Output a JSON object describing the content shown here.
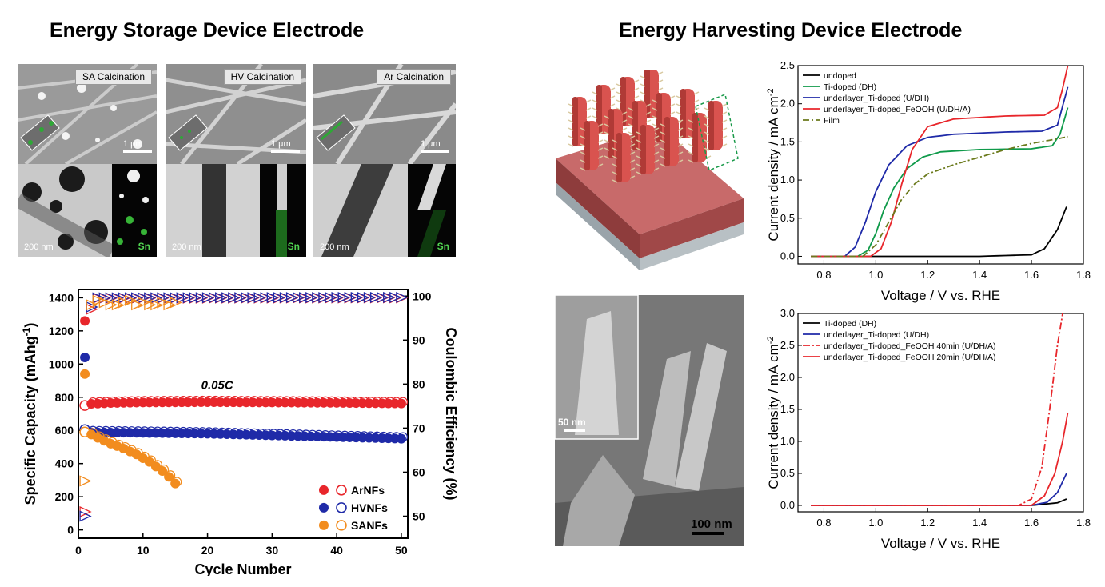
{
  "headings": {
    "left": "Energy Storage Device Electrode",
    "right": "Energy Harvesting Device Electrode"
  },
  "sem_panels": [
    {
      "tag": "SA Calcination",
      "scale_top": "1 μm",
      "scale_bottom": "200 nm",
      "element": "Sn"
    },
    {
      "tag": "HV Calcination",
      "scale_top": "1 μm",
      "scale_bottom": "200 nm",
      "element": "Sn"
    },
    {
      "tag": "Ar Calcination",
      "scale_top": "1 μm",
      "scale_bottom": "200 nm",
      "element": "Sn"
    }
  ],
  "sem_cross_section": {
    "inset_scale": "50 nm",
    "main_scale": "100 nm"
  },
  "colors": {
    "red": "#e8262b",
    "blue": "#1f2aa8",
    "orange": "#f28c1e",
    "green": "#0f9a4a",
    "olive": "#6b7a1c",
    "black": "#000000"
  },
  "chart_data": [
    {
      "type": "scatter",
      "xlabel": "Cycle Number",
      "ylabel": "Specific Capacity (mAhg-1)",
      "ylabel_main": "Specific Capacity (mAhg",
      "ylabel_sup": "-1",
      "ylabel_end": ")",
      "y2label": "Coulombic Efficiency (%)",
      "annotation": "0.05C",
      "xlim": [
        0,
        51
      ],
      "ylim": [
        -50,
        1450
      ],
      "y2lim": [
        45,
        101.5
      ],
      "xticks": [
        0,
        10,
        20,
        30,
        40,
        50
      ],
      "yticks": [
        0,
        200,
        400,
        600,
        800,
        1000,
        1200,
        1400
      ],
      "y2ticks": [
        50,
        60,
        70,
        80,
        90,
        100
      ],
      "legend_position": "bottom-right",
      "series": [
        {
          "name": "ArNFs",
          "color": "#e8262b",
          "capacity_first": 1260,
          "capacity": [
            [
              1,
              750
            ],
            [
              2,
              760
            ],
            [
              5,
              765
            ],
            [
              10,
              768
            ],
            [
              20,
              770
            ],
            [
              30,
              768
            ],
            [
              40,
              766
            ],
            [
              50,
              762
            ]
          ],
          "ce": [
            [
              1,
              51
            ],
            [
              2,
              97
            ],
            [
              3,
              99.5
            ],
            [
              50,
              99.6
            ]
          ]
        },
        {
          "name": "HVNFs",
          "color": "#1f2aa8",
          "capacity_first": 1040,
          "capacity": [
            [
              1,
              605
            ],
            [
              2,
              588
            ],
            [
              10,
              585
            ],
            [
              20,
              580
            ],
            [
              30,
              570
            ],
            [
              40,
              560
            ],
            [
              50,
              550
            ]
          ],
          "ce": [
            [
              1,
              50
            ],
            [
              2,
              97.5
            ],
            [
              3,
              99.6
            ],
            [
              50,
              99.7
            ]
          ]
        },
        {
          "name": "SANFs",
          "color": "#f28c1e",
          "capacity_first": 940,
          "capacity": [
            [
              1,
              590
            ],
            [
              2,
              575
            ],
            [
              3,
              555
            ],
            [
              5,
              520
            ],
            [
              7,
              490
            ],
            [
              9,
              455
            ],
            [
              11,
              410
            ],
            [
              13,
              355
            ],
            [
              14,
              320
            ],
            [
              15,
              280
            ]
          ],
          "ce": [
            [
              1,
              58
            ],
            [
              2,
              98
            ],
            [
              3,
              99
            ],
            [
              4,
              98.5
            ],
            [
              5,
              98
            ],
            [
              6,
              98
            ],
            [
              7,
              98.5
            ],
            [
              8,
              99
            ],
            [
              9,
              98
            ],
            [
              10,
              98.5
            ],
            [
              11,
              98
            ],
            [
              12,
              98
            ],
            [
              13,
              98.5
            ],
            [
              14,
              98
            ],
            [
              15,
              98.5
            ]
          ]
        }
      ]
    },
    {
      "type": "line",
      "xlabel": "Voltage / V vs. RHE",
      "ylabel": "Current density / mA cm-2",
      "ylabel_main": "Current density / mA cm",
      "ylabel_sup": "-2",
      "xlim": [
        0.7,
        1.8
      ],
      "ylim": [
        -0.1,
        2.5
      ],
      "xticks": [
        0.8,
        1.0,
        1.2,
        1.4,
        1.6,
        1.8
      ],
      "yticks": [
        0.0,
        0.5,
        1.0,
        1.5,
        2.0,
        2.5
      ],
      "legend_position": "top-left",
      "series": [
        {
          "name": "undoped",
          "color": "#000000",
          "dash": "",
          "points": [
            [
              0.75,
              0
            ],
            [
              1.4,
              0
            ],
            [
              1.6,
              0.02
            ],
            [
              1.65,
              0.1
            ],
            [
              1.7,
              0.35
            ],
            [
              1.735,
              0.65
            ]
          ]
        },
        {
          "name": "Ti-doped (DH)",
          "color": "#0f9a4a",
          "dash": "",
          "points": [
            [
              0.75,
              0
            ],
            [
              0.93,
              0
            ],
            [
              0.97,
              0.08
            ],
            [
              1.0,
              0.3
            ],
            [
              1.03,
              0.6
            ],
            [
              1.07,
              0.9
            ],
            [
              1.12,
              1.15
            ],
            [
              1.18,
              1.3
            ],
            [
              1.25,
              1.37
            ],
            [
              1.4,
              1.4
            ],
            [
              1.6,
              1.41
            ],
            [
              1.68,
              1.45
            ],
            [
              1.71,
              1.6
            ],
            [
              1.74,
              1.95
            ]
          ]
        },
        {
          "name": "underlayer_Ti-doped (U/DH)",
          "color": "#1f2aa8",
          "dash": "",
          "points": [
            [
              0.75,
              0
            ],
            [
              0.88,
              0
            ],
            [
              0.92,
              0.12
            ],
            [
              0.96,
              0.45
            ],
            [
              1.0,
              0.85
            ],
            [
              1.05,
              1.2
            ],
            [
              1.12,
              1.45
            ],
            [
              1.2,
              1.56
            ],
            [
              1.3,
              1.6
            ],
            [
              1.5,
              1.63
            ],
            [
              1.64,
              1.64
            ],
            [
              1.7,
              1.72
            ],
            [
              1.74,
              2.22
            ]
          ]
        },
        {
          "name": "underlayer_Ti-doped_FeOOH (U/DH/A)",
          "color": "#e8262b",
          "dash": "",
          "points": [
            [
              0.75,
              0
            ],
            [
              0.98,
              0
            ],
            [
              1.02,
              0.1
            ],
            [
              1.06,
              0.45
            ],
            [
              1.1,
              0.95
            ],
            [
              1.14,
              1.4
            ],
            [
              1.2,
              1.7
            ],
            [
              1.3,
              1.8
            ],
            [
              1.5,
              1.84
            ],
            [
              1.65,
              1.85
            ],
            [
              1.7,
              1.95
            ],
            [
              1.72,
              2.2
            ],
            [
              1.74,
              2.5
            ]
          ]
        },
        {
          "name": "Film",
          "color": "#6b7a1c",
          "dash": "8,3,2,3",
          "points": [
            [
              0.75,
              0
            ],
            [
              0.95,
              0
            ],
            [
              1.0,
              0.15
            ],
            [
              1.05,
              0.45
            ],
            [
              1.1,
              0.75
            ],
            [
              1.15,
              0.95
            ],
            [
              1.2,
              1.08
            ],
            [
              1.3,
              1.2
            ],
            [
              1.4,
              1.3
            ],
            [
              1.5,
              1.4
            ],
            [
              1.6,
              1.48
            ],
            [
              1.7,
              1.54
            ],
            [
              1.74,
              1.57
            ]
          ]
        }
      ]
    },
    {
      "type": "line",
      "xlabel": "Voltage / V vs. RHE",
      "ylabel": "Current density / mA cm-2",
      "ylabel_main": "Current density / mA cm",
      "ylabel_sup": "-2",
      "xlim": [
        0.7,
        1.8
      ],
      "ylim": [
        -0.1,
        3.0
      ],
      "xticks": [
        0.8,
        1.0,
        1.2,
        1.4,
        1.6,
        1.8
      ],
      "yticks": [
        0.0,
        0.5,
        1.0,
        1.5,
        2.0,
        2.5,
        3.0
      ],
      "legend_position": "top-left",
      "series": [
        {
          "name": "Ti-doped (DH)",
          "color": "#000000",
          "dash": "",
          "points": [
            [
              0.75,
              0
            ],
            [
              1.6,
              0
            ],
            [
              1.7,
              0.04
            ],
            [
              1.735,
              0.1
            ]
          ]
        },
        {
          "name": "underlayer_Ti-doped (U/DH)",
          "color": "#1f2aa8",
          "dash": "",
          "points": [
            [
              0.75,
              0
            ],
            [
              1.6,
              0
            ],
            [
              1.66,
              0.05
            ],
            [
              1.7,
              0.2
            ],
            [
              1.735,
              0.5
            ]
          ]
        },
        {
          "name": "underlayer_Ti-doped_FeOOH 40min (U/DH/A)",
          "color": "#e8262b",
          "dash": "9,3,2,3",
          "points": [
            [
              0.75,
              0
            ],
            [
              1.55,
              0
            ],
            [
              1.6,
              0.1
            ],
            [
              1.64,
              0.6
            ],
            [
              1.67,
              1.5
            ],
            [
              1.7,
              2.5
            ],
            [
              1.72,
              3.0
            ]
          ]
        },
        {
          "name": "underlayer_Ti-doped_FeOOH 20min (U/DH/A)",
          "color": "#e8262b",
          "dash": "",
          "points": [
            [
              0.75,
              0
            ],
            [
              1.6,
              0
            ],
            [
              1.65,
              0.15
            ],
            [
              1.69,
              0.5
            ],
            [
              1.72,
              1.0
            ],
            [
              1.74,
              1.45
            ]
          ]
        }
      ]
    }
  ]
}
